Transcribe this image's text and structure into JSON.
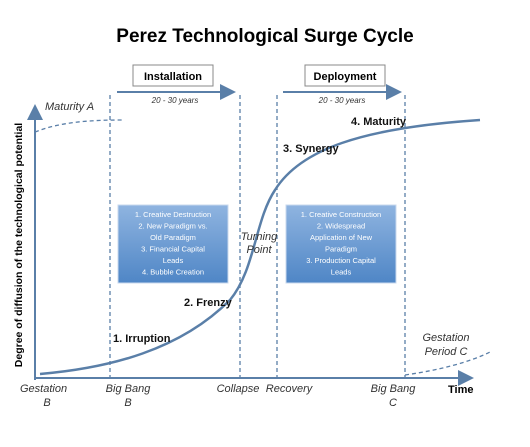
{
  "title": "Perez Technological Surge Cycle",
  "phases": [
    {
      "label": "Installation",
      "duration": "20 - 30 years"
    },
    {
      "label": "Deployment",
      "duration": "20 - 30 years"
    }
  ],
  "axes": {
    "y_label": "Degree of diffusion of the technological potential",
    "x_label": "Time"
  },
  "stages": [
    "1. Irruption",
    "2. Frenzy",
    "3. Synergy",
    "4. Maturity"
  ],
  "notes": {
    "maturity_a": "Maturity A",
    "turning_point": [
      "Turning",
      "Point"
    ],
    "gestation_c": [
      "Gestation",
      "Period C"
    ]
  },
  "boxes": [
    [
      "1. Creative Destruction",
      "2. New Paradigm vs.",
      "Old Paradigm",
      "3. Financial Capital",
      "Leads",
      "4. Bubble Creation"
    ],
    [
      "1. Creative Construction",
      "2. Widespread",
      "Application of New",
      "Paradigm",
      "3. Production Capital",
      "Leads"
    ]
  ],
  "x_labels": [
    [
      "Gestation",
      "B"
    ],
    [
      "Big Bang",
      "B"
    ],
    [
      "Collapse"
    ],
    [
      "Recovery"
    ],
    [
      "Big Bang",
      "C"
    ]
  ]
}
